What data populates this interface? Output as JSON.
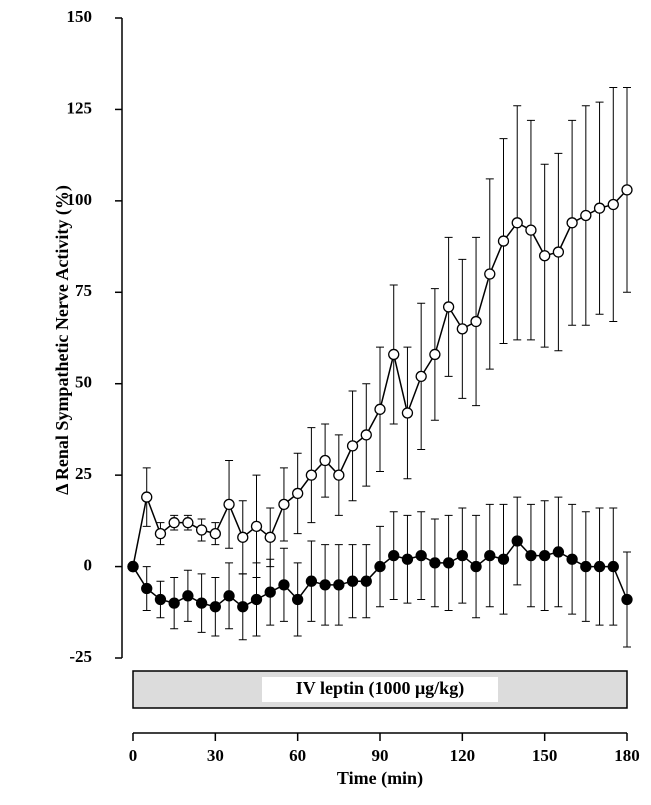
{
  "chart_data": {
    "type": "line",
    "y_label": "Δ Renal  Sympathetic Nerve Activity (%)",
    "x_label": "Time (min)",
    "annotation": "IV leptin (1000 μg/kg)",
    "x": [
      0,
      5,
      10,
      15,
      20,
      25,
      30,
      35,
      40,
      45,
      50,
      55,
      60,
      65,
      70,
      75,
      80,
      85,
      90,
      95,
      100,
      105,
      110,
      115,
      120,
      125,
      130,
      135,
      140,
      145,
      150,
      155,
      160,
      165,
      170,
      175,
      180
    ],
    "xlim": [
      0,
      180
    ],
    "xticks": [
      0,
      30,
      60,
      90,
      120,
      150,
      180
    ],
    "ylim": [
      -25,
      150
    ],
    "yticks": [
      -25,
      0,
      25,
      50,
      75,
      100,
      125,
      150
    ],
    "series": [
      {
        "color": "#ffffff",
        "values": [
          0,
          19,
          9,
          12,
          12,
          10,
          9,
          17,
          8,
          11,
          8,
          17,
          20,
          25,
          29,
          25,
          33,
          36,
          43,
          58,
          42,
          52,
          58,
          71,
          65,
          67,
          80,
          89,
          94,
          92,
          85,
          86,
          94,
          96,
          98,
          99,
          103
        ],
        "errors": [
          0,
          8,
          3,
          2,
          2,
          3,
          3,
          12,
          10,
          14,
          8,
          10,
          11,
          13,
          10,
          11,
          15,
          14,
          17,
          19,
          18,
          20,
          18,
          19,
          19,
          23,
          26,
          28,
          32,
          30,
          25,
          27,
          28,
          30,
          29,
          32,
          28
        ]
      },
      {
        "color": "#000000",
        "values": [
          0,
          -6,
          -9,
          -10,
          -8,
          -10,
          -11,
          -8,
          -11,
          -9,
          -7,
          -5,
          -9,
          -4,
          -5,
          -5,
          -4,
          -4,
          0,
          3,
          2,
          3,
          1,
          1,
          3,
          0,
          3,
          2,
          7,
          3,
          3,
          4,
          2,
          0,
          0,
          0,
          -9
        ],
        "errors": [
          0,
          6,
          5,
          7,
          7,
          8,
          8,
          9,
          9,
          10,
          9,
          10,
          10,
          11,
          11,
          11,
          10,
          10,
          11,
          12,
          12,
          12,
          12,
          13,
          13,
          14,
          14,
          15,
          12,
          14,
          15,
          15,
          15,
          15,
          16,
          16,
          13
        ]
      }
    ]
  }
}
